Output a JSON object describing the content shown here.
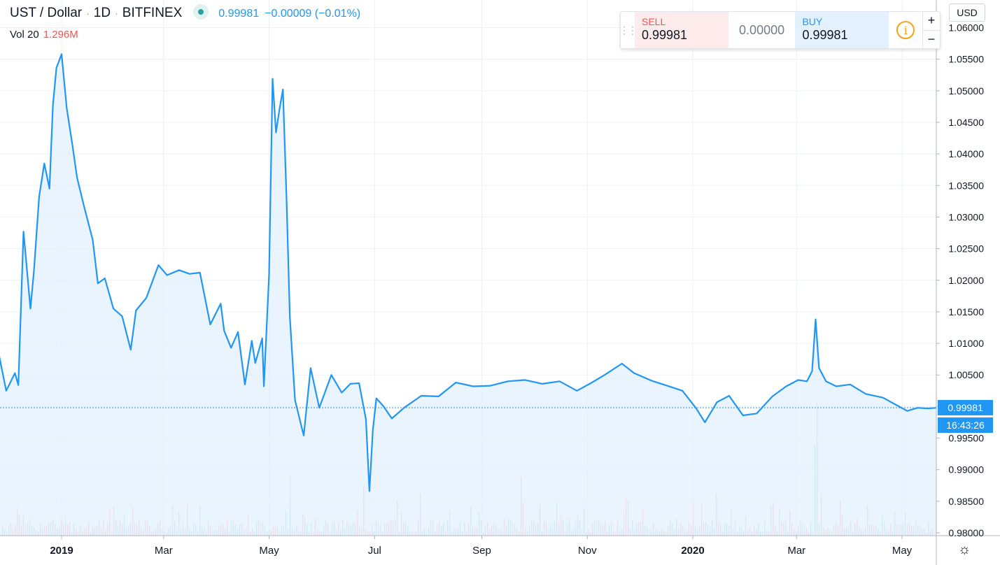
{
  "header": {
    "symbol": "UST / Dollar",
    "interval": "1D",
    "exchange": "BITFINEX",
    "last_price": "0.99981",
    "change": "−0.00009 (−0.01%)"
  },
  "volume": {
    "label": "Vol 20",
    "value": "1.296M"
  },
  "trade_panel": {
    "sell_label": "SELL",
    "sell_value": "0.99981",
    "spread": "0.00000",
    "buy_label": "BUY",
    "buy_value": "0.99981",
    "info_icon": "info-icon",
    "plus": "+",
    "minus": "−"
  },
  "currency": "USD",
  "price_label": "0.99981",
  "countdown": "16:43:26",
  "colors": {
    "line": "#2196f3",
    "fill": "#e3f0fd",
    "vol_up": "#26a69a",
    "vol_down": "#ef5350",
    "grid": "#eef0f5"
  },
  "chart_data": {
    "type": "area",
    "title": "UST / Dollar · 1D · BITFINEX",
    "xlabel": "",
    "ylabel": "",
    "ylim": [
      0.98,
      1.06
    ],
    "grid": true,
    "x_tick_labels": [
      "2019",
      "Mar",
      "May",
      "Jul",
      "Sep",
      "Nov",
      "2020",
      "Mar",
      "May"
    ],
    "y_tick_labels": [
      "1.06000",
      "1.05500",
      "1.05000",
      "1.04500",
      "1.04000",
      "1.03500",
      "1.03000",
      "1.02500",
      "1.02000",
      "1.01500",
      "1.01000",
      "1.00500",
      "1.00000",
      "0.99500",
      "0.99000",
      "0.98500",
      "0.98000"
    ],
    "x": [
      "2018-11-26",
      "2018-11-30",
      "2018-12-05",
      "2018-12-07",
      "2018-12-10",
      "2018-12-14",
      "2018-12-16",
      "2018-12-19",
      "2018-12-22",
      "2018-12-25",
      "2018-12-27",
      "2018-12-29",
      "2019-01-01",
      "2019-01-04",
      "2019-01-07",
      "2019-01-10",
      "2019-01-14",
      "2019-01-19",
      "2019-01-22",
      "2019-01-26",
      "2019-01-31",
      "2019-02-05",
      "2019-02-10",
      "2019-02-13",
      "2019-02-19",
      "2019-02-26",
      "2019-03-03",
      "2019-03-10",
      "2019-03-16",
      "2019-03-22",
      "2019-03-28",
      "2019-04-03",
      "2019-04-05",
      "2019-04-09",
      "2019-04-13",
      "2019-04-17",
      "2019-04-21",
      "2019-04-23",
      "2019-04-27",
      "2019-04-28",
      "2019-05-01",
      "2019-05-03",
      "2019-05-05",
      "2019-05-07",
      "2019-05-09",
      "2019-05-11",
      "2019-05-13",
      "2019-05-16",
      "2019-05-21",
      "2019-05-25",
      "2019-05-30",
      "2019-06-06",
      "2019-06-12",
      "2019-06-17",
      "2019-06-22",
      "2019-06-26",
      "2019-06-28",
      "2019-06-30",
      "2019-07-02",
      "2019-07-06",
      "2019-07-11",
      "2019-07-18",
      "2019-07-28",
      "2019-08-07",
      "2019-08-17",
      "2019-08-27",
      "2019-09-06",
      "2019-09-16",
      "2019-09-26",
      "2019-10-06",
      "2019-10-16",
      "2019-10-26",
      "2019-11-03",
      "2019-11-11",
      "2019-11-21",
      "2019-11-28",
      "2019-12-08",
      "2019-12-16",
      "2019-12-26",
      "2020-01-03",
      "2020-01-08",
      "2020-01-15",
      "2020-01-22",
      "2020-01-30",
      "2020-02-07",
      "2020-02-16",
      "2020-02-24",
      "2020-03-02",
      "2020-03-07",
      "2020-03-10",
      "2020-03-12",
      "2020-03-14",
      "2020-03-18",
      "2020-03-24",
      "2020-04-01",
      "2020-04-10",
      "2020-04-20",
      "2020-04-28",
      "2020-05-04",
      "2020-05-10",
      "2020-05-16",
      "2020-05-21"
    ],
    "series": [
      {
        "values": [
          1.0079,
          1.0025,
          1.0053,
          1.0034,
          1.0277,
          1.0155,
          1.0215,
          1.0332,
          1.0385,
          1.0345,
          1.0477,
          1.0536,
          1.0558,
          1.0472,
          1.0419,
          1.0362,
          1.0317,
          1.0264,
          1.0195,
          1.0203,
          1.0155,
          1.0143,
          1.009,
          1.0152,
          1.0172,
          1.0224,
          1.0208,
          1.0216,
          1.021,
          1.0212,
          1.013,
          1.0163,
          1.012,
          1.0093,
          1.0118,
          1.0035,
          1.0104,
          1.0069,
          1.0108,
          1.0032,
          1.0209,
          1.0519,
          1.0434,
          1.0471,
          1.0502,
          1.0335,
          1.0142,
          1.001,
          0.9954,
          1.0061,
          0.9998,
          1.005,
          1.0022,
          1.0036,
          1.0037,
          0.998,
          0.9866,
          0.9963,
          1.0013,
          1.0001,
          0.9981,
          0.9998,
          1.0017,
          1.0016,
          1.0038,
          1.0032,
          1.0033,
          1.004,
          1.0042,
          1.0036,
          1.004,
          1.0025,
          1.0037,
          1.005,
          1.0068,
          1.0053,
          1.0041,
          1.0034,
          1.0025,
          0.9997,
          0.9975,
          1.0007,
          1.0017,
          0.9986,
          0.9989,
          1.0016,
          1.0032,
          1.0042,
          1.004,
          1.0056,
          1.0138,
          1.0061,
          1.004,
          1.0032,
          1.0035,
          1.002,
          1.0014,
          1.0002,
          0.9993,
          0.9998,
          0.9997,
          0.9998
        ]
      }
    ],
    "last_value": 0.99981,
    "volume_note": "Volume histogram shown at bottom (Vol 20 = 1.296M)"
  }
}
